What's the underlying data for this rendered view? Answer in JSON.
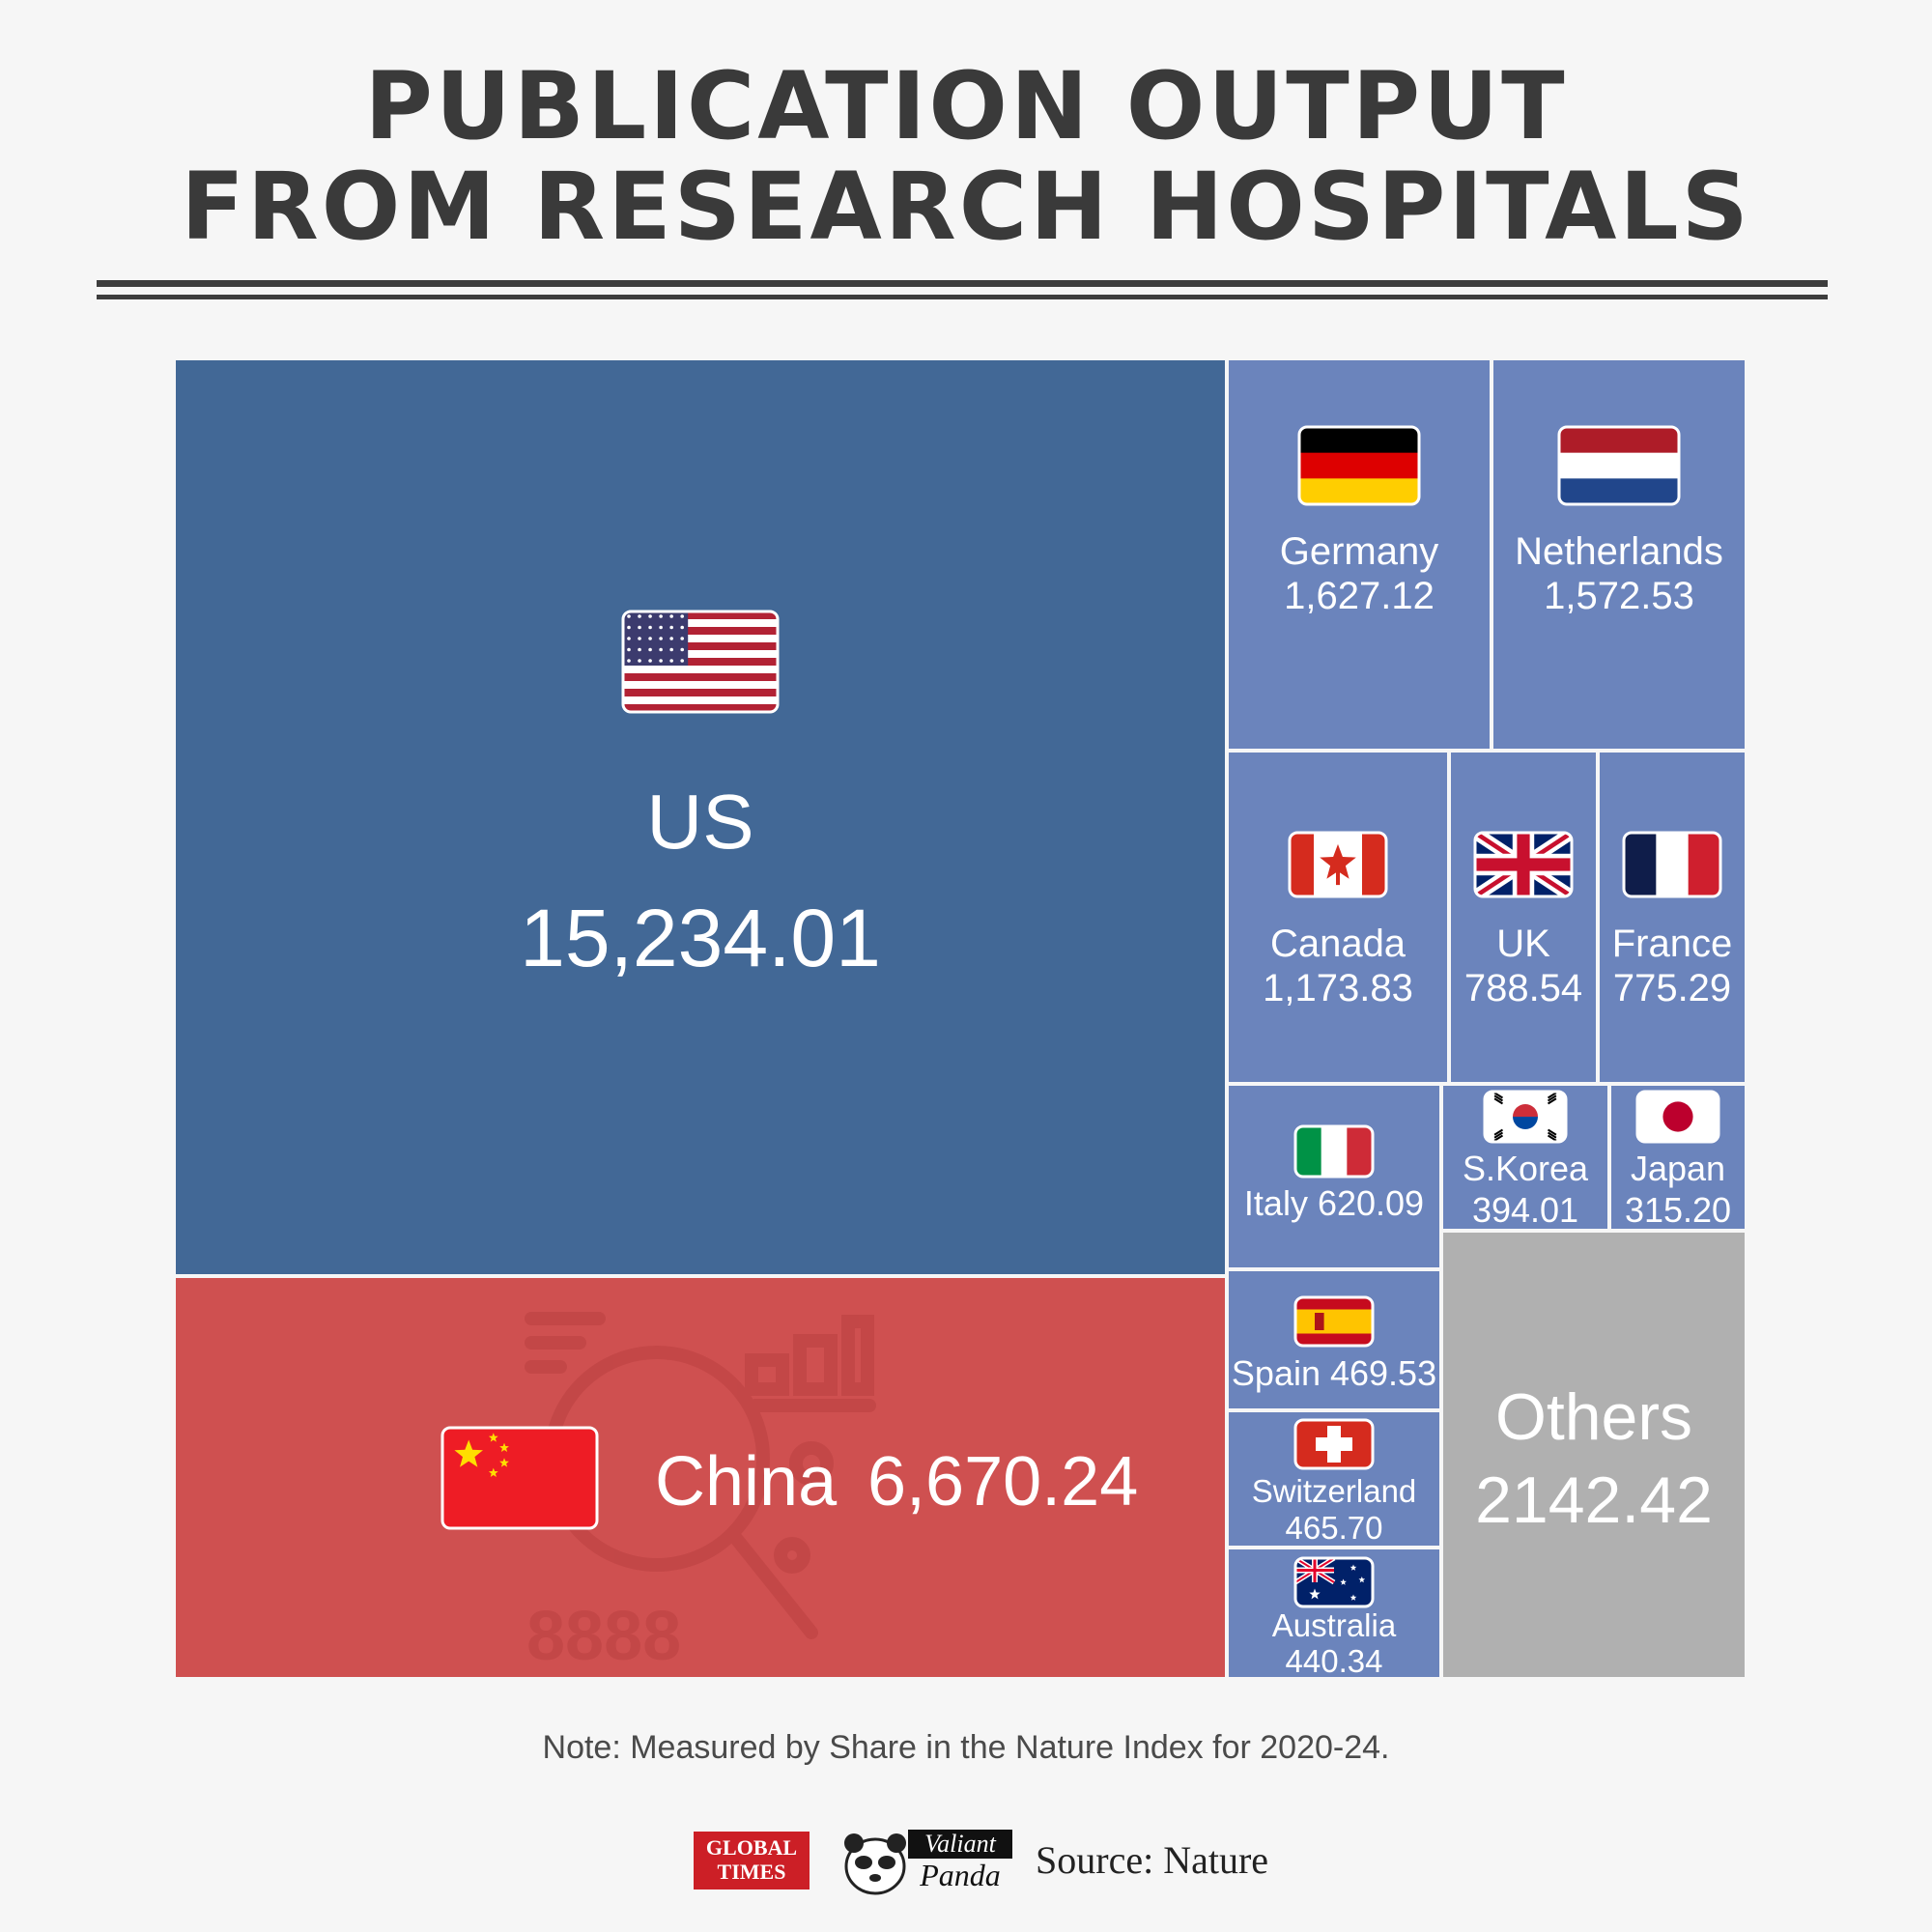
{
  "title": {
    "line1": "PUBLICATION OUTPUT",
    "line2": "FROM RESEARCH HOSPITALS"
  },
  "chart_data": {
    "type": "treemap",
    "items": [
      {
        "name": "US",
        "value": 15234.01,
        "label": "15,234.01",
        "color": "#426896",
        "flag": "us-flag-icon"
      },
      {
        "name": "China",
        "value": 6670.24,
        "label": "6,670.24",
        "color": "#cf5050",
        "flag": "china-flag-icon"
      },
      {
        "name": "Germany",
        "value": 1627.12,
        "label": "1,627.12",
        "color": "#6b84bc",
        "flag": "germany-flag-icon"
      },
      {
        "name": "Netherlands",
        "value": 1572.53,
        "label": "1,572.53",
        "color": "#6b84bc",
        "flag": "netherlands-flag-icon"
      },
      {
        "name": "Canada",
        "value": 1173.83,
        "label": "1,173.83",
        "color": "#6b84bc",
        "flag": "canada-flag-icon"
      },
      {
        "name": "UK",
        "value": 788.54,
        "label": "788.54",
        "color": "#6b84bc",
        "flag": "uk-flag-icon"
      },
      {
        "name": "France",
        "value": 775.29,
        "label": "775.29",
        "color": "#6b84bc",
        "flag": "france-flag-icon"
      },
      {
        "name": "Italy",
        "value": 620.09,
        "label": "620.09",
        "color": "#6b84bc",
        "flag": "italy-flag-icon"
      },
      {
        "name": "S.Korea",
        "value": 394.01,
        "label": "394.01",
        "color": "#6b84bc",
        "flag": "south-korea-flag-icon"
      },
      {
        "name": "Japan",
        "value": 315.2,
        "label": "315.20",
        "color": "#6b84bc",
        "flag": "japan-flag-icon"
      },
      {
        "name": "Spain",
        "value": 469.53,
        "label": "469.53",
        "color": "#6b84bc",
        "flag": "spain-flag-icon"
      },
      {
        "name": "Switzerland",
        "value": 465.7,
        "label": "465.70",
        "color": "#6b84bc",
        "flag": "switzerland-flag-icon"
      },
      {
        "name": "Australia",
        "value": 440.34,
        "label": "440.34",
        "color": "#6b84bc",
        "flag": "australia-flag-icon"
      },
      {
        "name": "Others",
        "value": 2142.42,
        "label": "2142.42",
        "color": "#b0b0b0",
        "flag": null
      }
    ]
  },
  "note": "Note: Measured by Share in the Nature Index for 2020-24.",
  "footer": {
    "global_times_line1": "GLOBAL",
    "global_times_line2": "TIMES",
    "valiant_panda_line1": "Valiant",
    "valiant_panda_line2": "Panda",
    "source": "Source: Nature"
  }
}
